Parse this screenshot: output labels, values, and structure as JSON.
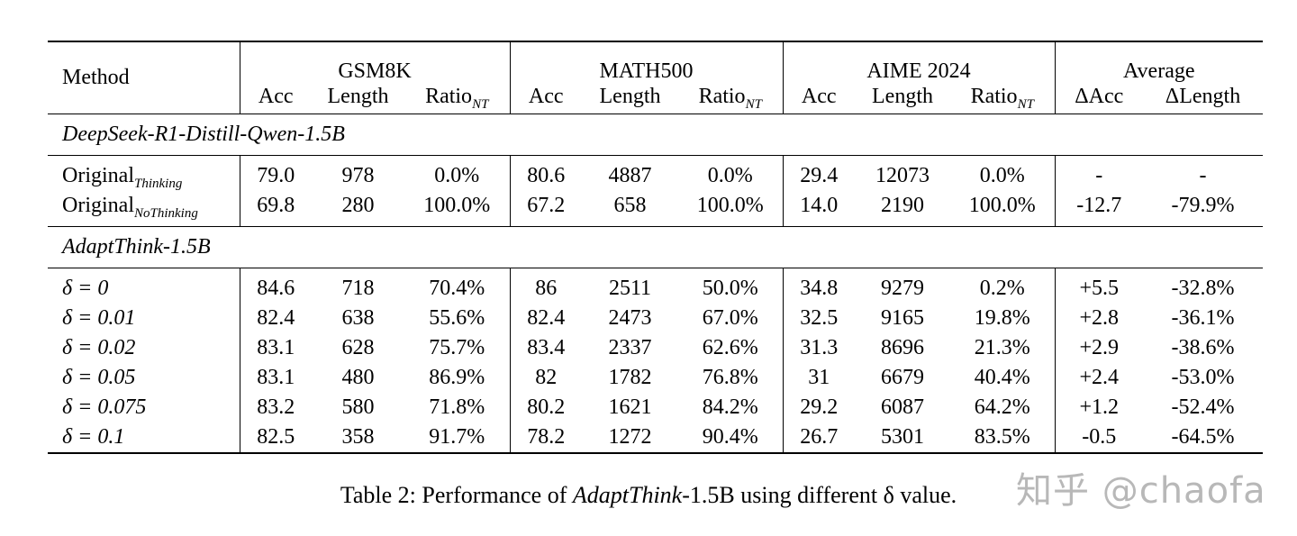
{
  "table": {
    "method_header": "Method",
    "groups": [
      "GSM8K",
      "MATH500",
      "AIME 2024",
      "Average"
    ],
    "sub_headers": {
      "acc": "Acc",
      "length": "Length",
      "ratio": "Ratio",
      "ratio_sub": "NT",
      "dacc": "ΔAcc",
      "dlength": "ΔLength"
    },
    "sections": [
      {
        "title": "DeepSeek-R1-Distill-Qwen-1.5B",
        "rows": [
          {
            "label": "Original",
            "label_sub": "Thinking",
            "values": [
              "79.0",
              "978",
              "0.0%",
              "80.6",
              "4887",
              "0.0%",
              "29.4",
              "12073",
              "0.0%",
              "-",
              "-"
            ]
          },
          {
            "label": "Original",
            "label_sub": "NoThinking",
            "values": [
              "69.8",
              "280",
              "100.0%",
              "67.2",
              "658",
              "100.0%",
              "14.0",
              "2190",
              "100.0%",
              "-12.7",
              "-79.9%"
            ]
          }
        ]
      },
      {
        "title": "AdaptThink-1.5B",
        "rows": [
          {
            "label": "δ = 0",
            "values": [
              "84.6",
              "718",
              "70.4%",
              "86",
              "2511",
              "50.0%",
              "34.8",
              "9279",
              "0.2%",
              "+5.5",
              "-32.8%"
            ]
          },
          {
            "label": "δ = 0.01",
            "values": [
              "82.4",
              "638",
              "55.6%",
              "82.4",
              "2473",
              "67.0%",
              "32.5",
              "9165",
              "19.8%",
              "+2.8",
              "-36.1%"
            ]
          },
          {
            "label": "δ = 0.02",
            "values": [
              "83.1",
              "628",
              "75.7%",
              "83.4",
              "2337",
              "62.6%",
              "31.3",
              "8696",
              "21.3%",
              "+2.9",
              "-38.6%"
            ]
          },
          {
            "label": "δ = 0.05",
            "values": [
              "83.1",
              "480",
              "86.9%",
              "82",
              "1782",
              "76.8%",
              "31",
              "6679",
              "40.4%",
              "+2.4",
              "-53.0%"
            ]
          },
          {
            "label": "δ = 0.075",
            "values": [
              "83.2",
              "580",
              "71.8%",
              "80.2",
              "1621",
              "84.2%",
              "29.2",
              "6087",
              "64.2%",
              "+1.2",
              "-52.4%"
            ]
          },
          {
            "label": "δ = 0.1",
            "values": [
              "82.5",
              "358",
              "91.7%",
              "78.2",
              "1272",
              "90.4%",
              "26.7",
              "5301",
              "83.5%",
              "-0.5",
              "-64.5%"
            ]
          }
        ]
      }
    ]
  },
  "caption": {
    "prefix": "Table 2: Performance of ",
    "italic": "AdaptThink",
    "suffix": "-1.5B using different δ value."
  },
  "watermark": "知乎 @chaofa"
}
